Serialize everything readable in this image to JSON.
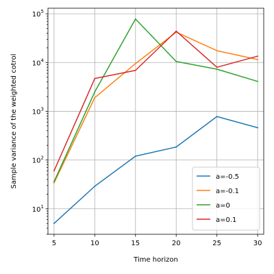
{
  "chart_data": {
    "type": "line",
    "title": "",
    "xlabel": "Time horizon",
    "ylabel": "Sample variance of the weighted cotrol",
    "yscale": "log",
    "x": [
      5,
      10,
      15,
      20,
      25,
      30
    ],
    "xlim": [
      4.25,
      30.75
    ],
    "ylim": [
      3.0,
      130000
    ],
    "xticks": [
      "5",
      "10",
      "15",
      "20",
      "25",
      "30"
    ],
    "yticks": [
      {
        "value": 10,
        "base": "10",
        "exp": "1"
      },
      {
        "value": 100,
        "base": "10",
        "exp": "2"
      },
      {
        "value": 1000,
        "base": "10",
        "exp": "3"
      },
      {
        "value": 10000,
        "base": "10",
        "exp": "4"
      },
      {
        "value": 100000,
        "base": "10",
        "exp": "5"
      }
    ],
    "grid": true,
    "legend_position": "lower-right",
    "series": [
      {
        "name": "a=-0.5",
        "color": "#1f77b4",
        "values": [
          5,
          29,
          120,
          185,
          780,
          460
        ]
      },
      {
        "name": "a=-0.1",
        "color": "#ff7f0e",
        "values": [
          34,
          1900,
          9500,
          42000,
          17500,
          11500
        ]
      },
      {
        "name": "a=0",
        "color": "#2ca02c",
        "values": [
          36,
          2500,
          78000,
          10500,
          7300,
          4100
        ]
      },
      {
        "name": "a=0.1",
        "color": "#d62728",
        "values": [
          60,
          4700,
          6900,
          44000,
          8000,
          13500
        ]
      }
    ]
  }
}
